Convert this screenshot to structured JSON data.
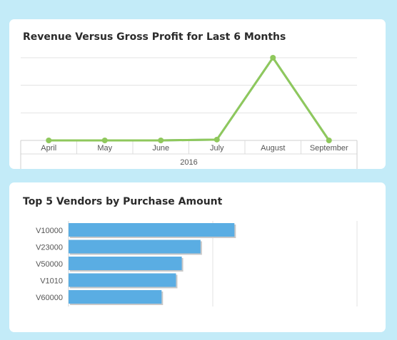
{
  "chart_data": [
    {
      "type": "line",
      "title": "Revenue Versus Gross Profit for Last 6 Months",
      "categories": [
        "April",
        "May",
        "June",
        "July",
        "August",
        "September"
      ],
      "x_group_label": "2016",
      "series": [
        {
          "values": [
            0,
            0,
            0,
            1,
            100,
            0
          ],
          "color": "#8fc85c"
        },
        {
          "values": [
            0,
            0,
            0,
            1,
            100,
            0
          ],
          "color": "#7fb6c8"
        }
      ],
      "ylim": [
        0,
        100
      ],
      "grid": true,
      "legend": "none"
    },
    {
      "type": "bar",
      "orientation": "horizontal",
      "title": "Top 5 Vendors by Purchase Amount",
      "categories": [
        "V10000",
        "V23000",
        "V50000",
        "V1010",
        "V60000"
      ],
      "values": [
        230,
        183,
        157,
        149,
        129
      ],
      "xlim": [
        0,
        400
      ],
      "bar_color": "#5aade3",
      "grid": true,
      "legend": "none"
    }
  ]
}
